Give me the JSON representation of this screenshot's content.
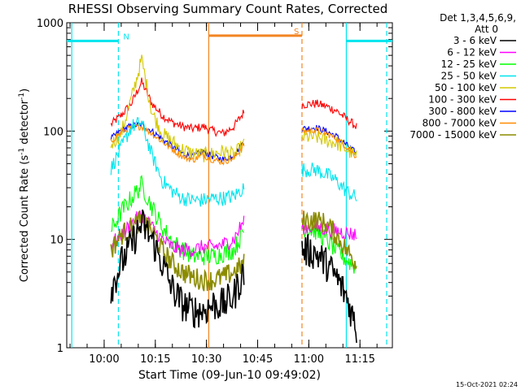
{
  "chart_data": {
    "type": "line",
    "title": "RHESSI Observing Summary Count Rates, Corrected",
    "xlabel": "Start Time (09-Jun-10 09:49:02)",
    "ylabel": "Corrected Count Rate (s",
    "ylabel_sup": "-1",
    "ylabel_tail": " detector",
    "ylabel_end": ")",
    "yscale": "log",
    "ylim": [
      1,
      1000
    ],
    "xlim": [
      "09:49:02",
      "11:24:30"
    ],
    "x_ticks": [
      "10:00",
      "10:15",
      "10:30",
      "10:45",
      "11:00",
      "11:15"
    ],
    "y_ticks": [
      "1",
      "10",
      "100",
      "1000"
    ],
    "timestamp": "15-Oct-2021 02:24",
    "legend_header": [
      "Det 1,3,4,5,6,9,",
      "Att 0"
    ],
    "legend_position": "right",
    "flags": [
      {
        "label": "N",
        "color": "#00e5ee",
        "segments": [
          [
            "09:49:02",
            "10:04:10"
          ],
          [
            "11:11:00",
            "11:24:30"
          ]
        ],
        "level": 680
      },
      {
        "label": "S",
        "color": "#f28522",
        "segments": [
          [
            "10:30:40",
            "10:58:00"
          ]
        ],
        "level": 760
      }
    ],
    "boundaries": [
      {
        "time": "09:50:30",
        "color": "#00e5ee",
        "style": "solid"
      },
      {
        "time": "10:04:10",
        "color": "#00e5ee",
        "style": "dashed"
      },
      {
        "time": "10:30:40",
        "color": "#f28522",
        "style": "solid"
      },
      {
        "time": "10:58:00",
        "color": "#f28522",
        "style": "dashed"
      },
      {
        "time": "11:11:00",
        "color": "#00e5ee",
        "style": "solid"
      },
      {
        "time": "11:22:50",
        "color": "#00e5ee",
        "style": "dashed"
      }
    ],
    "series": [
      {
        "name": "3 - 6 keV",
        "color": "#000000",
        "segment1": {
          "t": [
            "10:02",
            "10:05",
            "10:08",
            "10:11",
            "10:14",
            "10:17",
            "10:20",
            "10:23",
            "10:26",
            "10:29",
            "10:32",
            "10:35",
            "10:38",
            "10:41"
          ],
          "y": [
            3.5,
            6,
            9,
            14,
            10,
            6,
            3.5,
            2.5,
            2.2,
            2.2,
            2.5,
            2.5,
            3,
            5
          ]
        },
        "segment2": {
          "t": [
            "10:58",
            "11:02",
            "11:05",
            "11:08",
            "11:11",
            "11:14"
          ],
          "y": [
            8,
            7.5,
            6,
            4.5,
            3,
            1.5
          ]
        }
      },
      {
        "name": "6 - 12 keV",
        "color": "#ff00ff",
        "segment1": {
          "t": [
            "10:02",
            "10:05",
            "10:08",
            "10:11",
            "10:14",
            "10:17",
            "10:20",
            "10:23",
            "10:26",
            "10:29",
            "10:32",
            "10:35",
            "10:38",
            "10:41"
          ],
          "y": [
            9,
            11,
            14,
            17,
            13,
            10,
            8.5,
            8,
            8,
            8.5,
            8.5,
            9,
            10,
            15
          ]
        },
        "segment2": {
          "t": [
            "10:58",
            "11:02",
            "11:05",
            "11:08",
            "11:11",
            "11:14"
          ],
          "y": [
            13,
            13,
            12.5,
            12,
            11.5,
            11
          ]
        }
      },
      {
        "name": "12 - 25 keV",
        "color": "#00ff00",
        "segment1": {
          "t": [
            "10:02",
            "10:05",
            "10:08",
            "10:11",
            "10:14",
            "10:17",
            "10:20",
            "10:23",
            "10:26",
            "10:29",
            "10:32",
            "10:35",
            "10:38",
            "10:41"
          ],
          "y": [
            12,
            18,
            24,
            32,
            20,
            13,
            9.5,
            8,
            7,
            7,
            7,
            7.5,
            8,
            12
          ]
        },
        "segment2": {
          "t": [
            "10:58",
            "11:02",
            "11:05",
            "11:08",
            "11:11",
            "11:14"
          ],
          "y": [
            13,
            12,
            10,
            8,
            6.5,
            5.5
          ]
        }
      },
      {
        "name": "25 - 50 keV",
        "color": "#00e5ee",
        "segment1": {
          "t": [
            "10:02",
            "10:05",
            "10:08",
            "10:11",
            "10:14",
            "10:17",
            "10:20",
            "10:23",
            "10:26",
            "10:29",
            "10:32",
            "10:35",
            "10:38",
            "10:41"
          ],
          "y": [
            45,
            70,
            110,
            120,
            60,
            35,
            28,
            24,
            23,
            23,
            24,
            24,
            25,
            30
          ]
        },
        "segment2": {
          "t": [
            "10:58",
            "11:02",
            "11:05",
            "11:08",
            "11:11",
            "11:14"
          ],
          "y": [
            44,
            44,
            40,
            35,
            28,
            24
          ]
        }
      },
      {
        "name": "50 - 100 keV",
        "color": "#d4c800",
        "segment1": {
          "t": [
            "10:02",
            "10:05",
            "10:08",
            "10:11",
            "10:14",
            "10:17",
            "10:20",
            "10:23",
            "10:26",
            "10:29",
            "10:32",
            "10:35",
            "10:38",
            "10:41"
          ],
          "y": [
            75,
            95,
            200,
            460,
            150,
            95,
            80,
            68,
            62,
            60,
            62,
            65,
            60,
            75
          ]
        },
        "segment2": {
          "t": [
            "10:58",
            "11:02",
            "11:05",
            "11:08",
            "11:11",
            "11:14"
          ],
          "y": [
            88,
            88,
            82,
            78,
            68,
            57
          ]
        }
      },
      {
        "name": "100 - 300 keV",
        "color": "#ff0000",
        "segment1": {
          "t": [
            "10:02",
            "10:05",
            "10:08",
            "10:11",
            "10:14",
            "10:17",
            "10:20",
            "10:23",
            "10:26",
            "10:29",
            "10:32",
            "10:35",
            "10:38",
            "10:41"
          ],
          "y": [
            115,
            140,
            180,
            285,
            180,
            140,
            120,
            110,
            105,
            110,
            100,
            95,
            110,
            150
          ]
        },
        "segment2": {
          "t": [
            "10:58",
            "11:02",
            "11:05",
            "11:08",
            "11:11",
            "11:14"
          ],
          "y": [
            175,
            180,
            170,
            155,
            130,
            110
          ]
        }
      },
      {
        "name": "300 - 800 keV",
        "color": "#0000ff",
        "segment1": {
          "t": [
            "10:02",
            "10:05",
            "10:08",
            "10:11",
            "10:14",
            "10:17",
            "10:20",
            "10:23",
            "10:26",
            "10:29",
            "10:32",
            "10:35",
            "10:38",
            "10:41"
          ],
          "y": [
            85,
            102,
            112,
            115,
            100,
            85,
            72,
            62,
            58,
            65,
            58,
            55,
            60,
            80
          ]
        },
        "segment2": {
          "t": [
            "10:58",
            "11:02",
            "11:05",
            "11:08",
            "11:11",
            "11:14"
          ],
          "y": [
            105,
            108,
            100,
            90,
            75,
            62
          ]
        }
      },
      {
        "name": "800 - 7000 keV",
        "color": "#ff8c00",
        "segment1": {
          "t": [
            "10:02",
            "10:05",
            "10:08",
            "10:11",
            "10:14",
            "10:17",
            "10:20",
            "10:23",
            "10:26",
            "10:29",
            "10:32",
            "10:35",
            "10:38",
            "10:41"
          ],
          "y": [
            80,
            98,
            108,
            110,
            95,
            80,
            68,
            58,
            54,
            60,
            54,
            52,
            56,
            75
          ]
        },
        "segment2": {
          "t": [
            "10:58",
            "11:02",
            "11:05",
            "11:08",
            "11:11",
            "11:14"
          ],
          "y": [
            100,
            102,
            95,
            86,
            72,
            58
          ]
        }
      },
      {
        "name": "7000 - 15000 keV",
        "color": "#8b8b00",
        "segment1": {
          "t": [
            "10:02",
            "10:05",
            "10:08",
            "10:11",
            "10:14",
            "10:17",
            "10:20",
            "10:23",
            "10:26",
            "10:29",
            "10:32",
            "10:35",
            "10:38",
            "10:41"
          ],
          "y": [
            8,
            11,
            13,
            15,
            12,
            8,
            6,
            5,
            4.5,
            4.2,
            4.2,
            4.5,
            5,
            6
          ]
        },
        "segment2": {
          "t": [
            "10:58",
            "11:02",
            "11:05",
            "11:08",
            "11:11",
            "11:14"
          ],
          "y": [
            15,
            15,
            14,
            11,
            8,
            6
          ]
        }
      }
    ]
  }
}
